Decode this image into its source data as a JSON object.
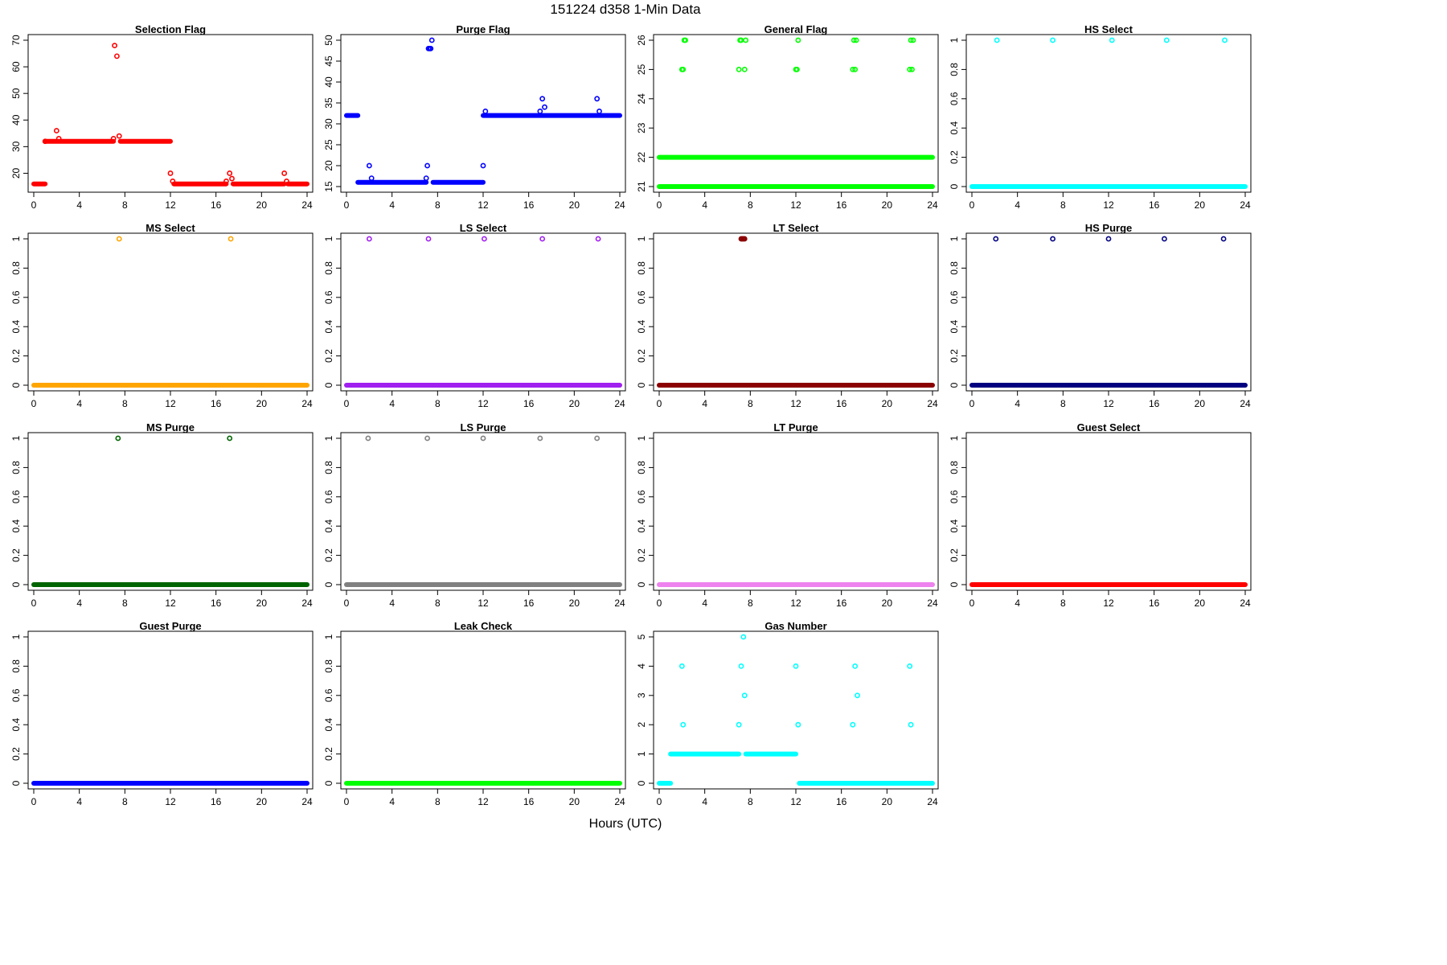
{
  "figure": {
    "title": "151224   d358   1-Min Data",
    "xlabel": "Hours (UTC)"
  },
  "chart_data": [
    {
      "type": "scatter",
      "title": "Selection Flag",
      "color": "#ff0000",
      "xlim": [
        0,
        24
      ],
      "ylim": [
        15,
        70
      ],
      "xticks": [
        0,
        4,
        8,
        12,
        16,
        20,
        24
      ],
      "yticks": [
        20,
        30,
        40,
        50,
        60,
        70
      ],
      "segments": [
        {
          "x": [
            0,
            1
          ],
          "y": 16
        },
        {
          "x": 1,
          "y": 32
        },
        {
          "x": [
            1,
            7
          ],
          "y": 32
        },
        {
          "x": [
            7.6,
            12
          ],
          "y": 32
        },
        {
          "x": [
            12.3,
            16.9
          ],
          "y": 16
        },
        {
          "x": [
            17.5,
            22
          ],
          "y": 16
        },
        {
          "x": [
            22.3,
            24
          ],
          "y": 16
        }
      ],
      "points": [
        [
          2,
          36
        ],
        [
          2.2,
          33
        ],
        [
          7,
          33
        ],
        [
          7.1,
          68
        ],
        [
          7.3,
          64
        ],
        [
          7.5,
          34
        ],
        [
          12,
          20
        ],
        [
          12.2,
          17
        ],
        [
          16.9,
          17
        ],
        [
          17.2,
          20
        ],
        [
          17.4,
          18
        ],
        [
          22,
          20
        ],
        [
          22.2,
          17
        ]
      ]
    },
    {
      "type": "scatter",
      "title": "Purge Flag",
      "color": "#0000ff",
      "xlim": [
        0,
        24
      ],
      "ylim": [
        15,
        50
      ],
      "xticks": [
        0,
        4,
        8,
        12,
        16,
        20,
        24
      ],
      "yticks": [
        15,
        20,
        25,
        30,
        35,
        40,
        45,
        50
      ],
      "segments": [
        {
          "x": [
            0,
            1
          ],
          "y": 32
        },
        {
          "x": [
            1,
            7
          ],
          "y": 16
        },
        {
          "x": [
            7.6,
            12
          ],
          "y": 16
        },
        {
          "x": [
            12,
            24
          ],
          "y": 32
        }
      ],
      "points": [
        [
          2,
          20
        ],
        [
          2.2,
          17
        ],
        [
          7,
          17
        ],
        [
          7.1,
          20
        ],
        [
          7.2,
          48
        ],
        [
          7.3,
          48
        ],
        [
          7.4,
          48
        ],
        [
          7.5,
          50
        ],
        [
          12,
          20
        ],
        [
          12.2,
          33
        ],
        [
          17,
          33
        ],
        [
          17.2,
          36
        ],
        [
          17.4,
          34
        ],
        [
          22,
          36
        ],
        [
          22.2,
          33
        ]
      ]
    },
    {
      "type": "scatter",
      "title": "General Flag",
      "color": "#00ff00",
      "xlim": [
        0,
        24
      ],
      "ylim": [
        21,
        26
      ],
      "xticks": [
        0,
        4,
        8,
        12,
        16,
        20,
        24
      ],
      "yticks": [
        21,
        22,
        23,
        24,
        25,
        26
      ],
      "segments": [
        {
          "x": [
            0,
            24
          ],
          "y": 21
        },
        {
          "x": [
            0,
            24
          ],
          "y": 22
        }
      ],
      "points": [
        [
          2,
          25
        ],
        [
          2.1,
          25
        ],
        [
          2.2,
          26
        ],
        [
          2.3,
          26
        ],
        [
          7,
          25
        ],
        [
          7.1,
          26
        ],
        [
          7.2,
          26
        ],
        [
          7.5,
          25
        ],
        [
          7.6,
          26
        ],
        [
          12,
          25
        ],
        [
          12.1,
          25
        ],
        [
          12.2,
          26
        ],
        [
          17,
          25
        ],
        [
          17.2,
          25
        ],
        [
          17.1,
          26
        ],
        [
          17.3,
          26
        ],
        [
          22,
          25
        ],
        [
          22.2,
          25
        ],
        [
          22.1,
          26
        ],
        [
          22.3,
          26
        ]
      ]
    },
    {
      "type": "scatter",
      "title": "HS Select",
      "color": "#00ffff",
      "xlim": [
        0,
        24
      ],
      "ylim": [
        0,
        1
      ],
      "xticks": [
        0,
        4,
        8,
        12,
        16,
        20,
        24
      ],
      "yticks": [
        0,
        0.2,
        0.4,
        0.6,
        0.8,
        1
      ],
      "segments": [
        {
          "x": [
            0,
            24
          ],
          "y": 0
        }
      ],
      "points": [
        [
          2.2,
          1
        ],
        [
          7.1,
          1
        ],
        [
          12.3,
          1
        ],
        [
          17.1,
          1
        ],
        [
          22.2,
          1
        ]
      ]
    },
    {
      "type": "scatter",
      "title": "MS Select",
      "color": "#ffa500",
      "xlim": [
        0,
        24
      ],
      "ylim": [
        0,
        1
      ],
      "xticks": [
        0,
        4,
        8,
        12,
        16,
        20,
        24
      ],
      "yticks": [
        0,
        0.2,
        0.4,
        0.6,
        0.8,
        1
      ],
      "segments": [
        {
          "x": [
            0,
            24
          ],
          "y": 0
        }
      ],
      "points": [
        [
          7.5,
          1
        ],
        [
          17.3,
          1
        ]
      ]
    },
    {
      "type": "scatter",
      "title": "LS Select",
      "color": "#a020f0",
      "xlim": [
        0,
        24
      ],
      "ylim": [
        0,
        1
      ],
      "xticks": [
        0,
        4,
        8,
        12,
        16,
        20,
        24
      ],
      "yticks": [
        0,
        0.2,
        0.4,
        0.6,
        0.8,
        1
      ],
      "segments": [
        {
          "x": [
            0,
            24
          ],
          "y": 0
        }
      ],
      "points": [
        [
          2,
          1
        ],
        [
          7.2,
          1
        ],
        [
          12.1,
          1
        ],
        [
          17.2,
          1
        ],
        [
          22.1,
          1
        ]
      ]
    },
    {
      "type": "scatter",
      "title": "LT Select",
      "color": "#8b0000",
      "xlim": [
        0,
        24
      ],
      "ylim": [
        0,
        1
      ],
      "xticks": [
        0,
        4,
        8,
        12,
        16,
        20,
        24
      ],
      "yticks": [
        0,
        0.2,
        0.4,
        0.6,
        0.8,
        1
      ],
      "segments": [
        {
          "x": [
            0,
            24
          ],
          "y": 0
        }
      ],
      "points": [
        [
          7.2,
          1
        ],
        [
          7.3,
          1
        ],
        [
          7.4,
          1
        ],
        [
          7.5,
          1
        ]
      ]
    },
    {
      "type": "scatter",
      "title": "HS Purge",
      "color": "#000080",
      "xlim": [
        0,
        24
      ],
      "ylim": [
        0,
        1
      ],
      "xticks": [
        0,
        4,
        8,
        12,
        16,
        20,
        24
      ],
      "yticks": [
        0,
        0.2,
        0.4,
        0.6,
        0.8,
        1
      ],
      "segments": [
        {
          "x": [
            0,
            24
          ],
          "y": 0
        }
      ],
      "points": [
        [
          2.1,
          1
        ],
        [
          7.1,
          1
        ],
        [
          12,
          1
        ],
        [
          16.9,
          1
        ],
        [
          22.1,
          1
        ]
      ]
    },
    {
      "type": "scatter",
      "title": "MS Purge",
      "color": "#006400",
      "xlim": [
        0,
        24
      ],
      "ylim": [
        0,
        1
      ],
      "xticks": [
        0,
        4,
        8,
        12,
        16,
        20,
        24
      ],
      "yticks": [
        0,
        0.2,
        0.4,
        0.6,
        0.8,
        1
      ],
      "segments": [
        {
          "x": [
            0,
            24
          ],
          "y": 0
        }
      ],
      "points": [
        [
          7.4,
          1
        ],
        [
          17.2,
          1
        ]
      ]
    },
    {
      "type": "scatter",
      "title": "LS Purge",
      "color": "#808080",
      "xlim": [
        0,
        24
      ],
      "ylim": [
        0,
        1
      ],
      "xticks": [
        0,
        4,
        8,
        12,
        16,
        20,
        24
      ],
      "yticks": [
        0,
        0.2,
        0.4,
        0.6,
        0.8,
        1
      ],
      "segments": [
        {
          "x": [
            0,
            24
          ],
          "y": 0
        }
      ],
      "points": [
        [
          1.9,
          1
        ],
        [
          7.1,
          1
        ],
        [
          12,
          1
        ],
        [
          17,
          1
        ],
        [
          22,
          1
        ]
      ]
    },
    {
      "type": "scatter",
      "title": "LT Purge",
      "color": "#ee82ee",
      "xlim": [
        0,
        24
      ],
      "ylim": [
        0,
        1
      ],
      "xticks": [
        0,
        4,
        8,
        12,
        16,
        20,
        24
      ],
      "yticks": [
        0,
        0.2,
        0.4,
        0.6,
        0.8,
        1
      ],
      "segments": [
        {
          "x": [
            0,
            24
          ],
          "y": 0
        }
      ],
      "points": []
    },
    {
      "type": "scatter",
      "title": "Guest Select",
      "color": "#ff0000",
      "xlim": [
        0,
        24
      ],
      "ylim": [
        0,
        1
      ],
      "xticks": [
        0,
        4,
        8,
        12,
        16,
        20,
        24
      ],
      "yticks": [
        0,
        0.2,
        0.4,
        0.6,
        0.8,
        1
      ],
      "segments": [
        {
          "x": [
            0,
            24
          ],
          "y": 0
        }
      ],
      "points": []
    },
    {
      "type": "scatter",
      "title": "Guest Purge",
      "color": "#0000ff",
      "xlim": [
        0,
        24
      ],
      "ylim": [
        0,
        1
      ],
      "xticks": [
        0,
        4,
        8,
        12,
        16,
        20,
        24
      ],
      "yticks": [
        0,
        0.2,
        0.4,
        0.6,
        0.8,
        1
      ],
      "segments": [
        {
          "x": [
            0,
            24
          ],
          "y": 0
        }
      ],
      "points": []
    },
    {
      "type": "scatter",
      "title": "Leak Check",
      "color": "#00ff00",
      "xlim": [
        0,
        24
      ],
      "ylim": [
        0,
        1
      ],
      "xticks": [
        0,
        4,
        8,
        12,
        16,
        20,
        24
      ],
      "yticks": [
        0,
        0.2,
        0.4,
        0.6,
        0.8,
        1
      ],
      "segments": [
        {
          "x": [
            0,
            24
          ],
          "y": 0
        }
      ],
      "points": []
    },
    {
      "type": "scatter",
      "title": "Gas Number",
      "color": "#00ffff",
      "xlim": [
        0,
        24
      ],
      "ylim": [
        0,
        5
      ],
      "xticks": [
        0,
        4,
        8,
        12,
        16,
        20,
        24
      ],
      "yticks": [
        0,
        1,
        2,
        3,
        4,
        5
      ],
      "segments": [
        {
          "x": [
            0,
            1
          ],
          "y": 0
        },
        {
          "x": [
            1,
            7
          ],
          "y": 1
        },
        {
          "x": [
            7.6,
            12
          ],
          "y": 1
        },
        {
          "x": [
            12.3,
            24
          ],
          "y": 0
        }
      ],
      "points": [
        [
          2.1,
          2
        ],
        [
          2,
          4
        ],
        [
          7,
          2
        ],
        [
          7.2,
          4
        ],
        [
          7.4,
          5
        ],
        [
          7.5,
          3
        ],
        [
          12.2,
          2
        ],
        [
          12,
          4
        ],
        [
          17,
          2
        ],
        [
          17.2,
          4
        ],
        [
          17.4,
          3
        ],
        [
          22.1,
          2
        ],
        [
          22,
          4
        ]
      ]
    }
  ]
}
